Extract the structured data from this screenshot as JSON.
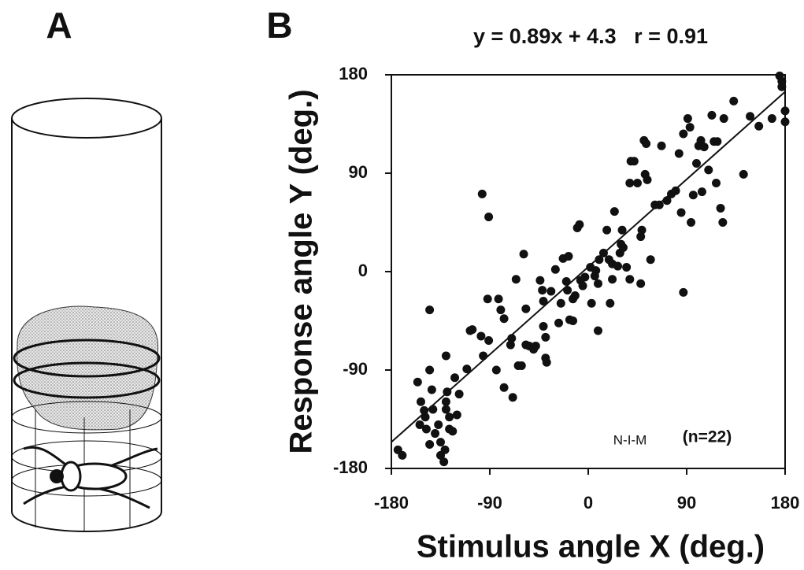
{
  "panel_a": {
    "label": "A"
  },
  "chart_data": {
    "type": "scatter",
    "panel_label": "B",
    "title": "y = 0.89x + 4.3   r = 0.91",
    "x_label": "Stimulus angle X (deg.)",
    "y_label": "Response angle Y (deg.)",
    "annotations": [
      "N-I-M",
      "(n=22)"
    ],
    "xlim": [
      -180,
      180
    ],
    "ylim": [
      -180,
      180
    ],
    "xticks": [
      -180,
      -90,
      0,
      90,
      180
    ],
    "yticks": [
      -180,
      -90,
      0,
      90,
      180
    ],
    "fit_line": {
      "slope": 0.89,
      "intercept": 4.3
    },
    "color": "#111111",
    "x": [
      -174,
      -170,
      -145,
      -97,
      -91,
      -156,
      -153,
      -150,
      -149,
      -154,
      -148,
      -145,
      -143,
      -142,
      -145,
      -140,
      -137,
      -135,
      -135,
      -132,
      -131,
      -130,
      -129,
      -130,
      -127,
      -127,
      -124,
      -120,
      -118,
      -130,
      -122,
      -111,
      -108,
      -106,
      -98,
      -96,
      -92,
      -91,
      -84,
      -82,
      -80,
      -77,
      -77,
      -71,
      -70,
      -69,
      -66,
      -64,
      -61,
      -59,
      -57,
      -57,
      -54,
      -50,
      -48,
      -44,
      -42,
      -41,
      -41,
      -39,
      -39,
      -38,
      -34,
      -30,
      -27,
      -23,
      -25,
      -20,
      -19,
      -18,
      -17,
      -14,
      -14,
      -12,
      -10,
      -8,
      -7,
      -5,
      -3,
      2,
      3,
      6,
      7,
      9,
      9,
      10,
      14,
      17,
      19,
      20,
      22,
      22,
      24,
      27,
      29,
      31,
      30,
      32,
      35,
      38,
      39,
      42,
      45,
      48,
      48,
      49,
      51,
      53,
      52,
      54,
      57,
      61,
      65,
      67,
      72,
      76,
      80,
      83,
      85,
      87,
      87,
      91,
      93,
      94,
      96,
      99,
      101,
      103,
      106,
      104,
      110,
      113,
      115,
      117,
      118,
      121,
      123,
      124,
      133,
      142,
      148,
      156,
      175,
      177,
      177,
      180,
      180,
      168,
      38
    ],
    "y": [
      -163,
      -168,
      -35,
      71,
      50,
      -101,
      -119,
      -127,
      -133,
      -140,
      -144,
      -90,
      -108,
      -126,
      -158,
      -148,
      -140,
      -156,
      -168,
      -174,
      -163,
      -119,
      -110,
      -126,
      -133,
      -144,
      -146,
      -131,
      -112,
      -77,
      -97,
      -89,
      -54,
      -53,
      -59,
      -77,
      -25,
      -63,
      -90,
      -25,
      -35,
      -43,
      -106,
      -67,
      -61,
      -115,
      -7,
      -86,
      -86,
      16,
      -67,
      -34,
      -68,
      -71,
      -68,
      -8,
      -17,
      -27,
      -50,
      -60,
      -79,
      -83,
      -18,
      2,
      -47,
      12,
      -29,
      -9,
      -17,
      14,
      -44,
      -25,
      -45,
      -22,
      40,
      43,
      -8,
      -13,
      -5,
      4,
      -29,
      -4,
      1,
      -11,
      -54,
      11,
      17,
      38,
      11,
      -29,
      7,
      -7,
      55,
      5,
      17,
      38,
      25,
      22,
      4,
      81,
      101,
      101,
      81,
      -11,
      32,
      38,
      120,
      117,
      89,
      84,
      11,
      61,
      61,
      115,
      65,
      71,
      74,
      108,
      54,
      -19,
      126,
      140,
      132,
      45,
      70,
      99,
      115,
      120,
      114,
      73,
      93,
      143,
      119,
      81,
      119,
      58,
      45,
      140,
      156,
      89,
      142,
      133,
      179,
      174,
      169,
      147,
      137,
      140,
      -7
    ]
  }
}
